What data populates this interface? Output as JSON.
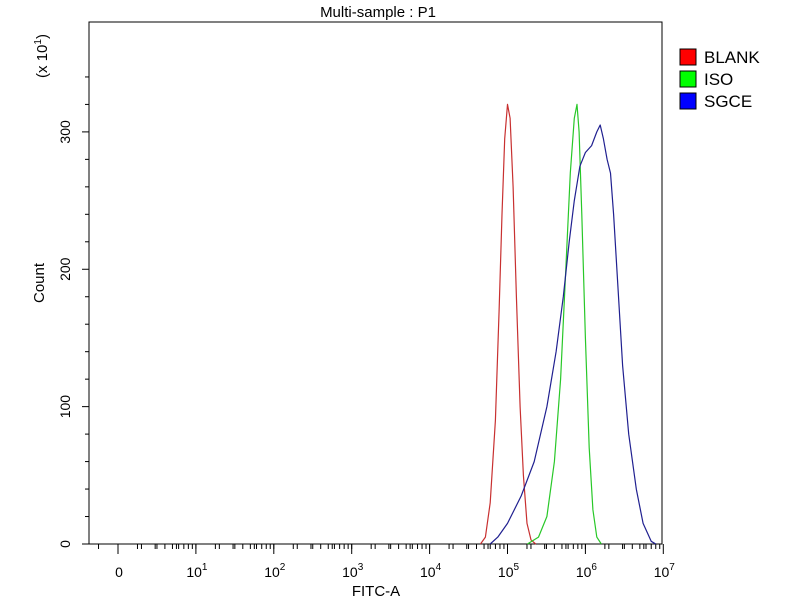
{
  "chart_data": {
    "type": "line",
    "title": "Multi-sample : P1",
    "xlabel": "FITC-A",
    "ylabel": "Count",
    "y_multiplier_label": "(x 10",
    "y_multiplier_exp": "1",
    "y_multiplier_close": ")",
    "x_scale": "log",
    "xlim": [
      1,
      10000000
    ],
    "ylim": [
      0,
      38
    ],
    "grid": false,
    "legend_position": "right",
    "y_ticks": [
      {
        "value": 0,
        "label": "0"
      },
      {
        "value": 10,
        "label": "100"
      },
      {
        "value": 20,
        "label": "200"
      },
      {
        "value": 30,
        "label": "300"
      }
    ],
    "x_ticks": [
      {
        "value": 1,
        "base": "0",
        "exp": ""
      },
      {
        "value": 10,
        "base": "10",
        "exp": "1"
      },
      {
        "value": 100,
        "base": "10",
        "exp": "2"
      },
      {
        "value": 1000,
        "base": "10",
        "exp": "3"
      },
      {
        "value": 10000,
        "base": "10",
        "exp": "4"
      },
      {
        "value": 100000,
        "base": "10",
        "exp": "5"
      },
      {
        "value": 1000000,
        "base": "10",
        "exp": "6"
      },
      {
        "value": 10000000,
        "base": "10",
        "exp": "7"
      }
    ],
    "series": [
      {
        "name": "BLANK",
        "color": "#c83030",
        "swatch": "#ff0000",
        "points": [
          [
            45000,
            0
          ],
          [
            52000,
            0.5
          ],
          [
            60000,
            3
          ],
          [
            70000,
            9
          ],
          [
            78000,
            17
          ],
          [
            85000,
            24
          ],
          [
            92000,
            29.5
          ],
          [
            100000,
            32
          ],
          [
            108000,
            31
          ],
          [
            118000,
            26
          ],
          [
            130000,
            18
          ],
          [
            145000,
            10
          ],
          [
            160000,
            5
          ],
          [
            178000,
            1.5
          ],
          [
            200000,
            0.3
          ],
          [
            230000,
            0
          ]
        ]
      },
      {
        "name": "ISO",
        "color": "#28c828",
        "swatch": "#00ff00",
        "points": [
          [
            180000,
            0
          ],
          [
            250000,
            0.5
          ],
          [
            320000,
            2
          ],
          [
            400000,
            6
          ],
          [
            480000,
            12
          ],
          [
            560000,
            20
          ],
          [
            640000,
            27
          ],
          [
            720000,
            31
          ],
          [
            780000,
            32
          ],
          [
            830000,
            30
          ],
          [
            900000,
            24
          ],
          [
            1000000,
            15
          ],
          [
            1120000,
            7
          ],
          [
            1250000,
            2.5
          ],
          [
            1400000,
            0.5
          ],
          [
            1600000,
            0
          ]
        ]
      },
      {
        "name": "SGCE",
        "color": "#202090",
        "swatch": "#0000ff",
        "points": [
          [
            60000,
            0
          ],
          [
            75000,
            0.5
          ],
          [
            100000,
            1.5
          ],
          [
            150000,
            3.5
          ],
          [
            220000,
            6
          ],
          [
            320000,
            10
          ],
          [
            420000,
            14
          ],
          [
            520000,
            18
          ],
          [
            620000,
            22
          ],
          [
            720000,
            25
          ],
          [
            850000,
            27.5
          ],
          [
            1000000,
            28.5
          ],
          [
            1200000,
            29
          ],
          [
            1400000,
            30
          ],
          [
            1550000,
            30.5
          ],
          [
            1700000,
            29.5
          ],
          [
            1900000,
            28
          ],
          [
            2100000,
            27
          ],
          [
            2300000,
            24
          ],
          [
            2600000,
            19
          ],
          [
            3000000,
            13
          ],
          [
            3600000,
            8
          ],
          [
            4500000,
            4
          ],
          [
            5500000,
            1.5
          ],
          [
            7000000,
            0.2
          ],
          [
            8000000,
            0
          ]
        ]
      }
    ]
  }
}
